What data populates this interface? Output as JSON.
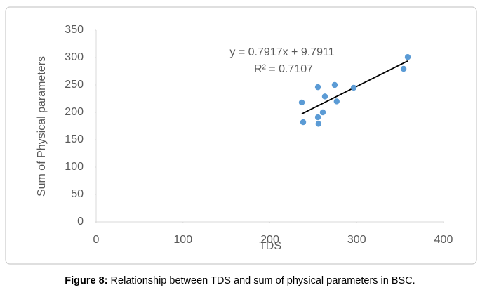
{
  "chart_data": {
    "type": "scatter",
    "x_label": "TDS",
    "y_label": "Sum of Physical parameters",
    "x": [
      236.8,
      238.4,
      255.4,
      255.4,
      256,
      261,
      263.4,
      274.7,
      277,
      296.6,
      354,
      358.8
    ],
    "values": [
      218,
      182,
      246,
      191,
      179,
      200,
      229,
      250,
      220,
      245,
      279.5,
      301
    ],
    "color": "#5b9bd5",
    "xlim": [
      0,
      400
    ],
    "xticks": [
      0,
      100,
      200,
      300,
      400
    ],
    "ylim": [
      0,
      350
    ],
    "yticks": [
      0,
      50,
      100,
      150,
      200,
      250,
      300,
      350
    ],
    "grid": false,
    "trendline": {
      "slope": 0.7917,
      "intercept": 9.7911,
      "color": "#000000"
    },
    "annotations": [
      "y = 0.7917x + 9.7911",
      "R² = 0.7107"
    ]
  },
  "caption": {
    "label": "Figure 8:",
    "text": " Relationship between TDS and sum of physical parameters in BSC."
  }
}
